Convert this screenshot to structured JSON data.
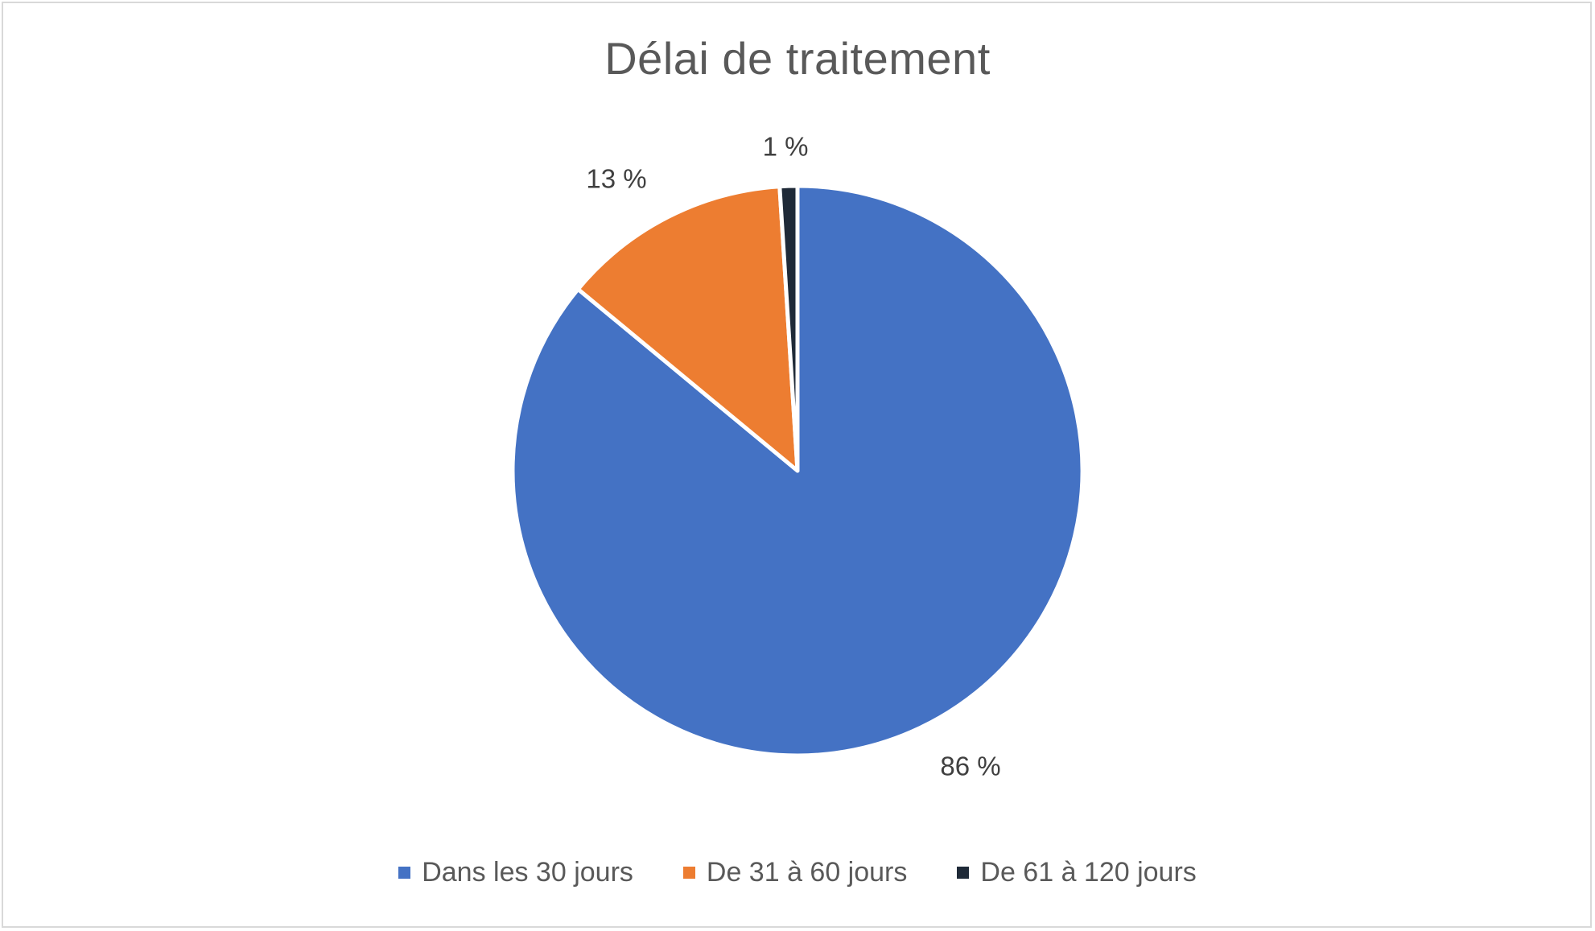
{
  "chart_data": {
    "type": "pie",
    "title": "Délai de traitement",
    "categories": [
      "Dans les 30 jours",
      "De 31 à 60 jours",
      "De 61 à 120 jours"
    ],
    "values": [
      86,
      13,
      1
    ],
    "labels": [
      "86 %",
      "13 %",
      "1 %"
    ],
    "colors": [
      "#4472C4",
      "#ED7D31",
      "#1F2A38"
    ],
    "legend_position": "bottom",
    "start_angle": "top",
    "direction": "clockwise"
  }
}
